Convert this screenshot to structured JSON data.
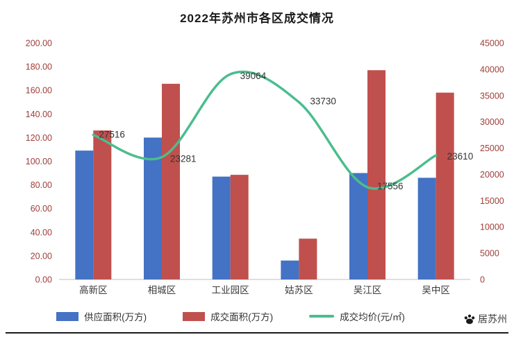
{
  "title": "2022年苏州市各区成交情况",
  "chart_data": {
    "type": "combo",
    "categories": [
      "高新区",
      "相城区",
      "工业园区",
      "姑苏区",
      "吴江区",
      "吴中区"
    ],
    "series": [
      {
        "name": "供应面积(万方)",
        "type": "bar",
        "axis": "left",
        "color": "#4472C4",
        "values": [
          109,
          120,
          87,
          16,
          90,
          86
        ]
      },
      {
        "name": "成交面积(万方)",
        "type": "bar",
        "axis": "left",
        "color": "#C0504D",
        "values": [
          126,
          165.5,
          88.5,
          34.5,
          177,
          158
        ]
      },
      {
        "name": "成交均价(元/㎡)",
        "type": "line",
        "axis": "right",
        "color": "#4BBD8E",
        "values": [
          27516,
          23281,
          39064,
          33730,
          17556,
          23610
        ],
        "data_labels": [
          "27516",
          "23281",
          "39064",
          "33730",
          "17556",
          "23610"
        ]
      }
    ],
    "left_axis": {
      "min": 0,
      "max": 200,
      "step": 20,
      "labels": [
        "200.00",
        "180.00",
        "160.00",
        "140.00",
        "120.00",
        "100.00",
        "80.00",
        "60.00",
        "40.00",
        "20.00",
        "0.00"
      ]
    },
    "right_axis": {
      "min": 0,
      "max": 45000,
      "step": 5000,
      "labels": [
        "45000",
        "40000",
        "35000",
        "30000",
        "25000",
        "20000",
        "15000",
        "10000",
        "5000",
        "0"
      ]
    },
    "grid": false,
    "legend_position": "bottom"
  },
  "watermark": {
    "text": "居苏州"
  }
}
